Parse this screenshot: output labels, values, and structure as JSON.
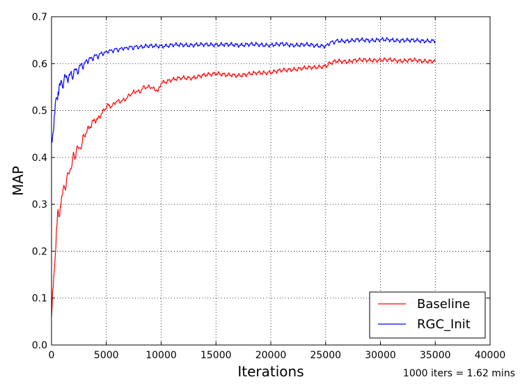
{
  "chart_data": {
    "type": "line",
    "xlabel": "Iterations",
    "ylabel": "MAP",
    "xlim": [
      0,
      40000
    ],
    "ylim": [
      0.0,
      0.7
    ],
    "xticks": [
      "0",
      "5000",
      "10000",
      "15000",
      "20000",
      "25000",
      "30000",
      "35000",
      "40000"
    ],
    "yticks": [
      "0.0",
      "0.1",
      "0.2",
      "0.3",
      "0.4",
      "0.5",
      "0.6",
      "0.7"
    ],
    "grid": true,
    "legend_position": "bottom-right",
    "note": "1000 iters = 1.62 mins",
    "series": [
      {
        "name": "Baseline",
        "color": "#ff0000",
        "x": [
          0,
          100,
          200,
          300,
          400,
          500,
          600,
          700,
          800,
          900,
          1000,
          1200,
          1400,
          1600,
          1800,
          2000,
          2200,
          2400,
          2600,
          2800,
          3000,
          3300,
          3600,
          3900,
          4200,
          4500,
          4800,
          5100,
          5500,
          6000,
          6500,
          7000,
          7500,
          8000,
          8500,
          9000,
          9500,
          9700,
          10000,
          11000,
          12000,
          13000,
          14000,
          15000,
          16000,
          17000,
          18000,
          19000,
          20000,
          21000,
          22000,
          23000,
          24000,
          24900,
          25300,
          26000,
          27000,
          28000,
          29000,
          30000,
          31000,
          32000,
          33000,
          34000,
          35000
        ],
        "values": [
          0.06,
          0.1,
          0.14,
          0.18,
          0.22,
          0.26,
          0.28,
          0.27,
          0.3,
          0.31,
          0.32,
          0.34,
          0.35,
          0.37,
          0.38,
          0.4,
          0.41,
          0.42,
          0.42,
          0.43,
          0.45,
          0.46,
          0.47,
          0.48,
          0.48,
          0.49,
          0.5,
          0.51,
          0.51,
          0.52,
          0.52,
          0.53,
          0.54,
          0.54,
          0.55,
          0.55,
          0.545,
          0.54,
          0.56,
          0.565,
          0.57,
          0.57,
          0.575,
          0.58,
          0.575,
          0.575,
          0.578,
          0.58,
          0.582,
          0.585,
          0.588,
          0.59,
          0.592,
          0.593,
          0.6,
          0.605,
          0.605,
          0.607,
          0.608,
          0.607,
          0.608,
          0.606,
          0.607,
          0.606,
          0.605
        ]
      },
      {
        "name": "RGC_Init",
        "color": "#0000ff",
        "x": [
          0,
          100,
          200,
          300,
          400,
          500,
          600,
          700,
          800,
          1000,
          1200,
          1500,
          1800,
          2000,
          2500,
          3000,
          3500,
          4000,
          4500,
          5000,
          5500,
          6000,
          6500,
          7000,
          7500,
          8000,
          9000,
          10000,
          11000,
          12000,
          13000,
          14000,
          15000,
          16000,
          17000,
          18000,
          19000,
          20000,
          21000,
          22000,
          23000,
          24000,
          25000,
          25500,
          26000,
          27000,
          28000,
          29000,
          30000,
          31000,
          32000,
          33000,
          34000,
          35000
        ],
        "values": [
          0.44,
          0.45,
          0.47,
          0.49,
          0.52,
          0.53,
          0.54,
          0.55,
          0.55,
          0.56,
          0.565,
          0.57,
          0.575,
          0.58,
          0.59,
          0.6,
          0.61,
          0.615,
          0.62,
          0.625,
          0.628,
          0.63,
          0.632,
          0.634,
          0.635,
          0.636,
          0.637,
          0.638,
          0.639,
          0.64,
          0.64,
          0.64,
          0.641,
          0.64,
          0.64,
          0.641,
          0.64,
          0.64,
          0.641,
          0.64,
          0.64,
          0.639,
          0.638,
          0.645,
          0.648,
          0.649,
          0.65,
          0.65,
          0.651,
          0.65,
          0.65,
          0.649,
          0.649,
          0.648
        ]
      }
    ]
  }
}
